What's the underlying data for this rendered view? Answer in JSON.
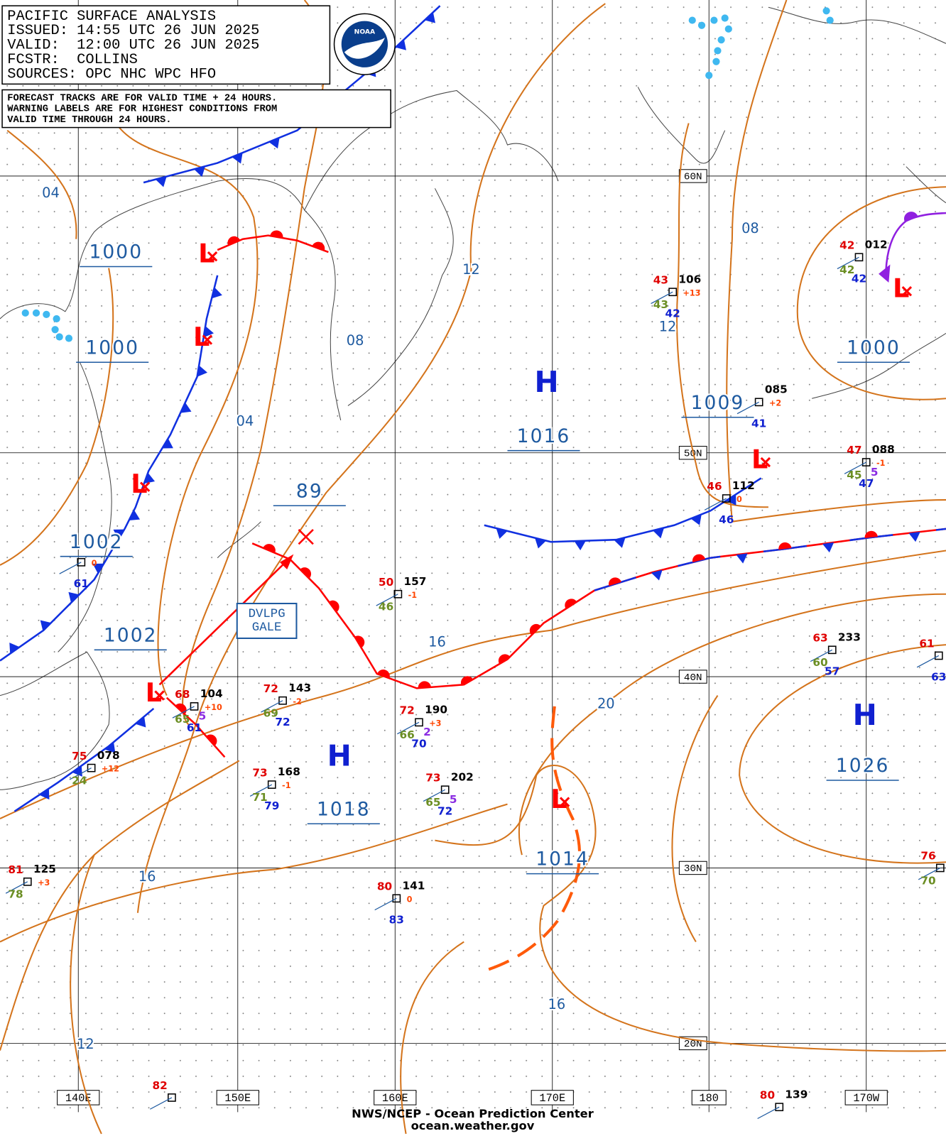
{
  "header": {
    "title": "PACIFIC SURFACE ANALYSIS",
    "lines": [
      "ISSUED: 14:55 UTC 26 JUN 2025",
      "VALID:  12:00 UTC 26 JUN 2025",
      "FCSTR:  COLLINS",
      "SOURCES: OPC NHC WPC HFO"
    ],
    "logo": "NOAA"
  },
  "notes": [
    "FORECAST TRACKS ARE FOR VALID TIME + 24 HOURS.",
    "WARNING LABELS ARE FOR HIGHEST CONDITIONS FROM",
    "VALID TIME THROUGH 24 HOURS."
  ],
  "longitudes": [
    "140E",
    "150E",
    "160E",
    "170E",
    "180",
    "170W"
  ],
  "latitudes": [
    "60N",
    "50N",
    "40N",
    "30N",
    "20N"
  ],
  "isobar_labels": [
    "04",
    "1000",
    "1000",
    "1002",
    "1002",
    "04",
    "89",
    "08",
    "12",
    "16",
    "16",
    "12",
    "20",
    "16",
    "08",
    "12",
    "1009",
    "1000",
    "1026",
    "1018",
    "1016",
    "1014"
  ],
  "highs": [
    "H",
    "H",
    "H"
  ],
  "lows": [
    "L",
    "L",
    "L",
    "L",
    "L",
    "L",
    "L"
  ],
  "warning": [
    "DVLPG",
    "GALE"
  ],
  "stations": [
    {
      "temp": "43",
      "pressure": "106",
      "tendency": "+13",
      "dewpoint": "43",
      "sst": "42"
    },
    {
      "temp": "42",
      "pressure": "012",
      "dewpoint": "42",
      "sst": "42"
    },
    {
      "pressure": "085",
      "tendency": "+2",
      "sst": "41"
    },
    {
      "temp": "47",
      "pressure": "088",
      "tendency": "-1",
      "dewpoint": "45",
      "wave": "5",
      "sst": "47"
    },
    {
      "temp": "46",
      "pressure": "112",
      "tendency": "0",
      "sst": "46"
    },
    {
      "temp": "50",
      "pressure": "157",
      "tendency": "-1",
      "dewpoint": "46"
    },
    {
      "tendency": "0",
      "sst": "61"
    },
    {
      "temp": "68",
      "pressure": "104",
      "tendency": "+10",
      "dewpoint": "65",
      "wave": "5",
      "sst": "61"
    },
    {
      "temp": "72",
      "pressure": "143",
      "tendency": "-2",
      "dewpoint": "69",
      "sst": "72"
    },
    {
      "temp": "72",
      "pressure": "190",
      "tendency": "+3",
      "dewpoint": "66",
      "wave": "2",
      "sst": "70"
    },
    {
      "temp": "75",
      "pressure": "078",
      "tendency": "+12",
      "dewpoint": "24"
    },
    {
      "temp": "73",
      "pressure": "168",
      "tendency": "-1",
      "dewpoint": "71",
      "sst": "79"
    },
    {
      "temp": "73",
      "pressure": "202",
      "dewpoint": "65",
      "wave": "5",
      "sst": "72"
    },
    {
      "temp": "63",
      "pressure": "233",
      "dewpoint": "60",
      "sst": "57"
    },
    {
      "temp": "61",
      "sst": "63"
    },
    {
      "temp": "81",
      "pressure": "125",
      "tendency": "+3",
      "dewpoint": "78"
    },
    {
      "temp": "80",
      "pressure": "141",
      "tendency": "0",
      "sst": "83"
    },
    {
      "temp": "76",
      "dewpoint": "70"
    },
    {
      "temp": "82"
    },
    {
      "temp": "80",
      "pressure": "139"
    }
  ],
  "footer": [
    "NWS/NCEP - Ocean Prediction Center",
    "ocean.weather.gov"
  ]
}
